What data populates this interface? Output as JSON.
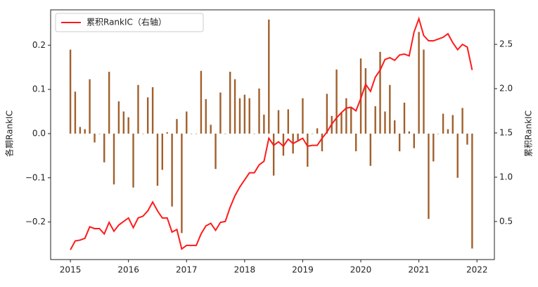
{
  "chart_data": {
    "type": "bar-line",
    "xlabel": null,
    "ylabel": "各期RankIC",
    "y2label": "累积RankIC",
    "legend": "upper left",
    "x": [
      2015,
      2015.083,
      2015.167,
      2015.25,
      2015.333,
      2015.417,
      2015.5,
      2015.583,
      2015.667,
      2015.75,
      2015.833,
      2015.917,
      2016,
      2016.083,
      2016.167,
      2016.25,
      2016.333,
      2016.417,
      2016.5,
      2016.583,
      2016.667,
      2016.75,
      2016.833,
      2016.917,
      2017,
      2017.083,
      2017.167,
      2017.25,
      2017.333,
      2017.417,
      2017.5,
      2017.583,
      2017.667,
      2017.75,
      2017.833,
      2017.917,
      2018,
      2018.083,
      2018.167,
      2018.25,
      2018.333,
      2018.417,
      2018.5,
      2018.583,
      2018.667,
      2018.75,
      2018.833,
      2018.917,
      2019,
      2019.083,
      2019.167,
      2019.25,
      2019.333,
      2019.417,
      2019.5,
      2019.583,
      2019.667,
      2019.75,
      2019.833,
      2019.917,
      2020,
      2020.083,
      2020.167,
      2020.25,
      2020.333,
      2020.417,
      2020.5,
      2020.583,
      2020.667,
      2020.75,
      2020.833,
      2020.917,
      2021,
      2021.083,
      2021.167,
      2021.25,
      2021.333,
      2021.417,
      2021.5,
      2021.583,
      2021.667,
      2021.75,
      2021.833,
      2021.917
    ],
    "series": [
      {
        "type": "bar",
        "axis": "y",
        "color": "#a0602d",
        "values": [
          0.19,
          0.095,
          0.015,
          0.01,
          0.123,
          -0.02,
          0.0,
          -0.065,
          0.14,
          -0.115,
          0.073,
          0.05,
          0.037,
          -0.122,
          0.11,
          0.0,
          0.082,
          0.105,
          -0.118,
          -0.082,
          0.003,
          -0.165,
          0.033,
          -0.225,
          0.05,
          0.0,
          0.0,
          0.142,
          0.078,
          0.02,
          -0.08,
          0.093,
          0.0,
          0.14,
          0.123,
          0.08,
          0.088,
          0.08,
          0.0,
          0.102,
          0.043,
          0.258,
          -0.095,
          0.053,
          -0.05,
          0.055,
          -0.045,
          -0.015,
          0.08,
          -0.075,
          0.0,
          0.012,
          -0.04,
          0.09,
          0.04,
          0.145,
          0.048,
          0.08,
          0.06,
          -0.04,
          0.17,
          0.148,
          -0.073,
          0.062,
          0.185,
          0.05,
          0.11,
          0.03,
          -0.04,
          0.07,
          0.005,
          -0.033,
          0.23,
          0.19,
          -0.193,
          -0.063,
          0.0,
          0.045,
          0.01,
          0.042,
          -0.1,
          0.058,
          -0.025,
          -0.26
        ]
      },
      {
        "type": "line",
        "axis": "y2",
        "name": "累积RankIC（右轴）",
        "color": "#ff1a1a",
        "values": [
          0.18,
          0.28,
          0.29,
          0.31,
          0.44,
          0.42,
          0.42,
          0.36,
          0.49,
          0.39,
          0.46,
          0.5,
          0.54,
          0.43,
          0.54,
          0.56,
          0.62,
          0.72,
          0.62,
          0.54,
          0.54,
          0.38,
          0.41,
          0.19,
          0.23,
          0.23,
          0.23,
          0.36,
          0.45,
          0.48,
          0.4,
          0.49,
          0.5,
          0.66,
          0.79,
          0.89,
          0.97,
          1.05,
          1.05,
          1.14,
          1.18,
          1.44,
          1.36,
          1.4,
          1.35,
          1.43,
          1.38,
          1.41,
          1.44,
          1.35,
          1.36,
          1.36,
          1.44,
          1.51,
          1.6,
          1.67,
          1.73,
          1.78,
          1.79,
          1.75,
          1.89,
          2.05,
          1.97,
          2.13,
          2.21,
          2.33,
          2.35,
          2.32,
          2.38,
          2.39,
          2.37,
          2.64,
          2.79,
          2.6,
          2.54,
          2.54,
          2.56,
          2.58,
          2.62,
          2.52,
          2.44,
          2.5,
          2.47,
          2.21
        ]
      }
    ],
    "xlim": [
      2014.66,
      2022.3
    ],
    "xticks": [
      2015,
      2016,
      2017,
      2018,
      2019,
      2020,
      2021,
      2022
    ],
    "ylim": [
      -0.285,
      0.28
    ],
    "yticks": [
      {
        "value": -0.2,
        "label": "−0.2"
      },
      {
        "value": -0.1,
        "label": "−0.1"
      },
      {
        "value": 0,
        "label": "0.0"
      },
      0.1,
      0.2
    ],
    "y2lim": [
      0.07,
      2.89
    ],
    "y2ticks": [
      0.5,
      {
        "value": 1,
        "label": "1.0"
      },
      1.5,
      {
        "value": 2,
        "label": "2.0"
      },
      2.5
    ]
  }
}
